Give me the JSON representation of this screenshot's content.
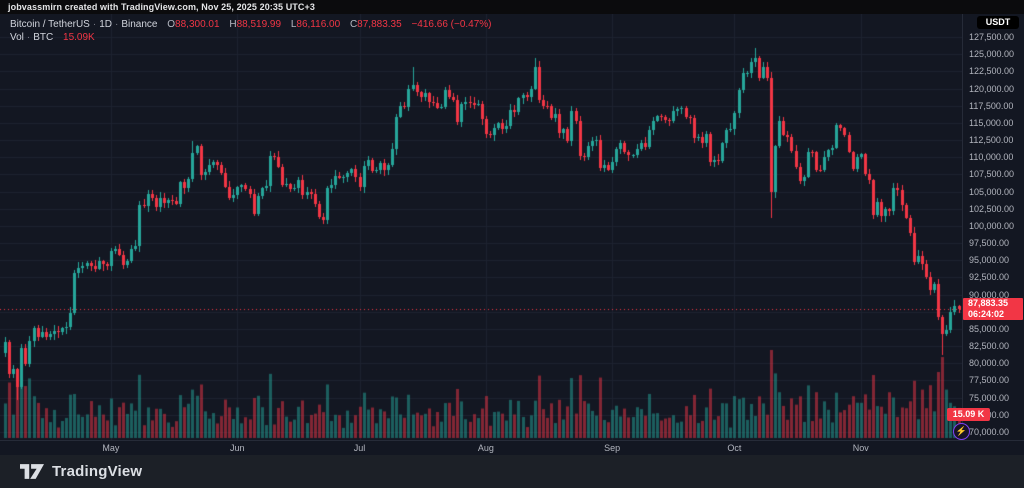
{
  "attribution": {
    "text": "jobvassmirn created with TradingView.com, Nov 25, 2025 20:35 UTC+3"
  },
  "legend": {
    "symbol": "Bitcoin / TetherUS",
    "interval": "1D",
    "exchange": "Binance",
    "o_label": "O",
    "o": "88,300.01",
    "h_label": "H",
    "h": "88,519.99",
    "l_label": "L",
    "l": "86,116.00",
    "c_label": "C",
    "c": "87,883.35",
    "change": "−416.66 (−0.47%)",
    "vol_label": "Vol",
    "vol_unit": "BTC",
    "vol_value": "15.09K"
  },
  "price_scale": {
    "currency_button": "USDT",
    "ticks": [
      "127,500.00",
      "125,000.00",
      "122,500.00",
      "120,000.00",
      "117,500.00",
      "115,000.00",
      "112,500.00",
      "110,000.00",
      "107,500.00",
      "105,000.00",
      "102,500.00",
      "100,000.00",
      "97,500.00",
      "95,000.00",
      "92,500.00",
      "90,000.00",
      "87,500.00",
      "85,000.00",
      "82,500.00",
      "80,000.00",
      "77,500.00",
      "75,000.00",
      "72,500.00",
      "70,000.00"
    ]
  },
  "badges": {
    "last_price": "87,883.35",
    "countdown": "06:24:02",
    "volume": "15.09 K",
    "badge_color": "#f23645"
  },
  "footer": {
    "brand": "TradingView"
  },
  "boost_icon": "⚡",
  "chart_data": {
    "type": "candlestick",
    "title": "Bitcoin / TetherUS · 1D · Binance",
    "ylabel": "USDT",
    "ylim": [
      70000,
      127500
    ],
    "y_tick_step": 2500,
    "grid": true,
    "x_start_date": "Apr 5, 2025",
    "x_end_date": "Nov 25, 2025",
    "months": [
      {
        "label": "May",
        "day": 26
      },
      {
        "label": "Jun",
        "day": 57
      },
      {
        "label": "Jul",
        "day": 87
      },
      {
        "label": "Aug",
        "day": 118
      },
      {
        "label": "Sep",
        "day": 149
      },
      {
        "label": "Oct",
        "day": 179
      },
      {
        "label": "Nov",
        "day": 210
      }
    ],
    "first_open": 81.5,
    "last_price": 87.88335,
    "closes_thousands_usd": [
      83.1,
      78.4,
      79.2,
      76.5,
      82.3,
      79.9,
      83.3,
      85.2,
      83.9,
      84.6,
      83.8,
      84.2,
      84.7,
      84.6,
      85.1,
      85.3,
      87.3,
      93.2,
      93.9,
      94.1,
      94.6,
      94.2,
      93.8,
      94.9,
      94.4,
      94.2,
      96.4,
      96.7,
      95.8,
      94.3,
      94.9,
      96.6,
      97.1,
      103.1,
      102.9,
      104.6,
      104.0,
      102.7,
      104.1,
      103.4,
      103.8,
      103.6,
      103.2,
      106.4,
      105.5,
      106.9,
      110.6,
      111.6,
      107.4,
      107.9,
      108.9,
      109.3,
      108.8,
      107.7,
      105.7,
      104.0,
      104.5,
      105.6,
      105.9,
      105.4,
      104.7,
      101.7,
      104.3,
      105.5,
      105.8,
      110.2,
      110.1,
      108.6,
      106.0,
      106.1,
      105.4,
      105.5,
      106.7,
      104.5,
      104.9,
      104.6,
      103.2,
      101.3,
      100.9,
      105.5,
      106.0,
      107.2,
      107.0,
      107.1,
      107.7,
      108.3,
      107.1,
      105.6,
      108.7,
      109.6,
      108.0,
      108.2,
      109.2,
      108.2,
      108.9,
      111.2,
      115.9,
      117.5,
      117.3,
      119.9,
      120.5,
      119.5,
      118.7,
      119.3,
      118.0,
      117.9,
      117.2,
      117.3,
      119.8,
      118.7,
      118.3,
      115.1,
      117.8,
      118.1,
      117.9,
      117.6,
      117.7,
      115.6,
      113.4,
      113.2,
      114.2,
      115.0,
      114.1,
      114.6,
      116.9,
      116.6,
      118.6,
      119.0,
      118.8,
      120.0,
      123.2,
      118.4,
      117.5,
      117.4,
      115.7,
      116.3,
      113.5,
      114.1,
      112.4,
      116.7,
      115.3,
      110.2,
      110.1,
      111.6,
      112.4,
      112.5,
      108.5,
      108.8,
      108.2,
      109.3,
      111.2,
      112.0,
      110.7,
      110.3,
      110.3,
      111.2,
      112.1,
      111.5,
      114.0,
      115.3,
      116.0,
      115.9,
      115.4,
      115.3,
      116.7,
      117.0,
      117.2,
      115.8,
      115.7,
      112.8,
      112.9,
      112.1,
      113.4,
      109.3,
      109.6,
      109.5,
      112.0,
      114.0,
      114.1,
      116.5,
      119.8,
      122.2,
      122.3,
      123.8,
      124.4,
      121.6,
      123.2,
      121.6,
      104.9,
      111.6,
      115.2,
      113.2,
      112.9,
      110.9,
      108.6,
      106.6,
      107.1,
      110.8,
      110.7,
      108.2,
      108.1,
      110.0,
      111.0,
      111.4,
      114.7,
      114.2,
      113.2,
      110.8,
      108.3,
      110.0,
      110.4,
      107.5,
      106.7,
      101.6,
      103.5,
      101.4,
      102.4,
      102.2,
      105.5,
      105.2,
      103.1,
      101.2,
      99.0,
      94.7,
      95.6,
      94.4,
      92.6,
      90.6,
      91.6,
      86.7,
      84.2,
      84.8,
      87.5,
      88.3,
      87.9
    ],
    "wick_overrides": {
      "3": {
        "low": 74.6
      },
      "46": {
        "high": 112.3
      },
      "100": {
        "high": 123.2
      },
      "130": {
        "high": 124.5
      },
      "184": {
        "high": 125.9
      },
      "188": {
        "low": 101.2
      },
      "230": {
        "low": 81.2
      }
    },
    "volume_overrides": {
      "17": 0.5,
      "21": 0.42,
      "46": 0.55,
      "47": 0.48,
      "63": 0.35,
      "96": 0.46,
      "109": 0.4,
      "142": 0.42,
      "155": 0.35,
      "188": 1.0,
      "193": 0.45,
      "210": 0.4,
      "217": 0.52,
      "218": 0.46,
      "225": 0.55,
      "227": 0.6,
      "229": 0.75,
      "230": 0.92,
      "231": 0.55,
      "232": 0.4,
      "233": 0.36,
      "234": 0.34
    },
    "colors": {
      "up": "#26a69a",
      "down": "#f23645",
      "vol_up": "rgba(38,166,154,0.5)",
      "vol_down": "rgba(242,54,69,0.5)",
      "grid": "#1d2230",
      "background": "#131722",
      "last_price_line": "#f23645"
    }
  }
}
